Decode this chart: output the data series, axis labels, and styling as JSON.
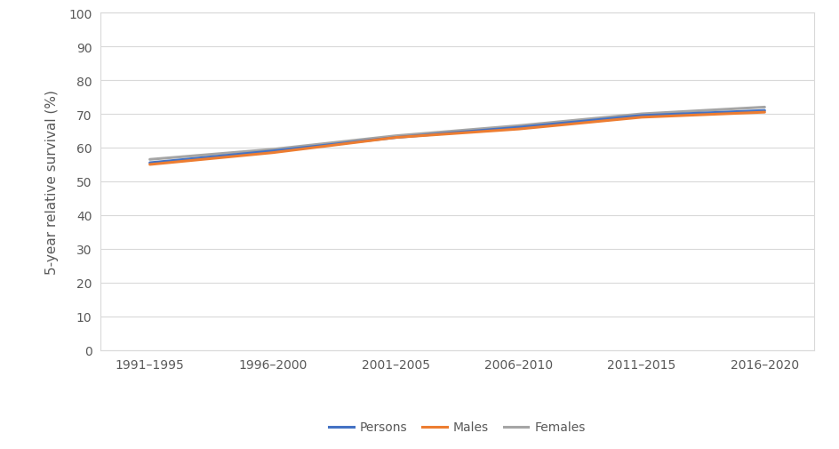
{
  "categories": [
    "1991–1995",
    "1996–2000",
    "2001–2005",
    "2006–2010",
    "2011–2015",
    "2016–2020"
  ],
  "persons": [
    55.5,
    59.0,
    63.0,
    66.0,
    69.5,
    71.0
  ],
  "males": [
    55.0,
    58.5,
    63.0,
    65.5,
    69.0,
    70.5
  ],
  "females": [
    56.5,
    59.5,
    63.5,
    66.5,
    70.0,
    72.0
  ],
  "persons_color": "#4472C4",
  "males_color": "#ED7D31",
  "females_color": "#A5A5A5",
  "ylabel": "5-year relative survival (%)",
  "ylim": [
    0,
    100
  ],
  "yticks": [
    0,
    10,
    20,
    30,
    40,
    50,
    60,
    70,
    80,
    90,
    100
  ],
  "legend_labels": [
    "Persons",
    "Males",
    "Females"
  ],
  "linewidth": 2.2,
  "background_color": "#FFFFFF",
  "plot_bg_color": "#FFFFFF",
  "grid_color": "#D9D9D9",
  "border_color": "#D9D9D9",
  "tick_color": "#595959",
  "tick_fontsize": 10,
  "label_fontsize": 11
}
